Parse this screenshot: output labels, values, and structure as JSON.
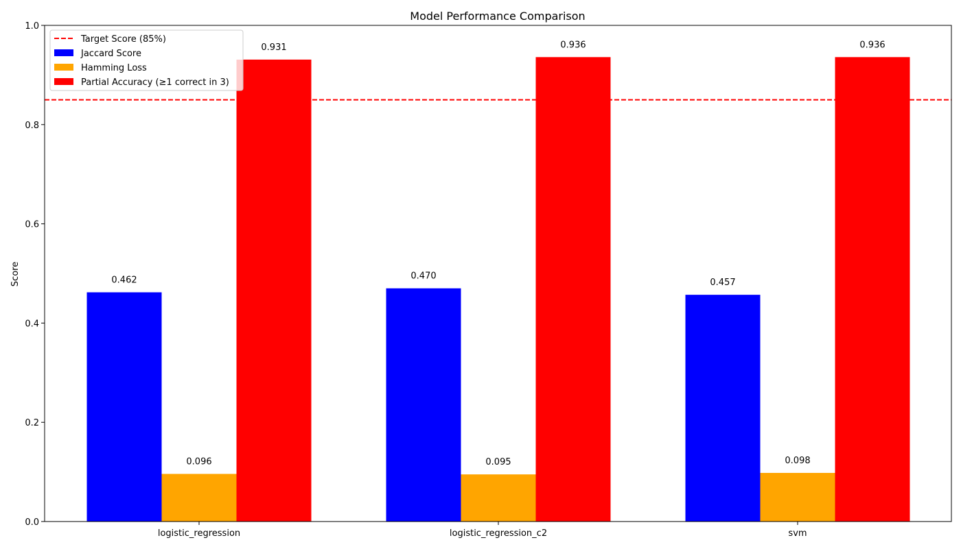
{
  "chart_data": {
    "type": "bar",
    "title": "Model Performance Comparison",
    "xlabel": "",
    "ylabel": "Score",
    "ylim": [
      0,
      1.0
    ],
    "yticks": [
      0.0,
      0.2,
      0.4,
      0.6,
      0.8,
      1.0
    ],
    "ytick_labels": [
      "0.0",
      "0.2",
      "0.4",
      "0.6",
      "0.8",
      "1.0"
    ],
    "categories": [
      "logistic_regression",
      "logistic_regression_c2",
      "svm"
    ],
    "series": [
      {
        "name": "Jaccard Score",
        "color": "#0000ff",
        "values": [
          0.462,
          0.47,
          0.457
        ],
        "labels": [
          "0.462",
          "0.470",
          "0.457"
        ]
      },
      {
        "name": "Hamming Loss",
        "color": "#ffa500",
        "values": [
          0.096,
          0.095,
          0.098
        ],
        "labels": [
          "0.096",
          "0.095",
          "0.098"
        ]
      },
      {
        "name": "Partial Accuracy (≥1 correct in 3)",
        "color": "#ff0000",
        "values": [
          0.931,
          0.936,
          0.936
        ],
        "labels": [
          "0.931",
          "0.936",
          "0.936"
        ]
      }
    ],
    "reference_line": {
      "name": "Target Score (85%)",
      "value": 0.85,
      "color": "#ff0000",
      "style": "dashed"
    },
    "legend_position": "top-left",
    "grid": false
  }
}
